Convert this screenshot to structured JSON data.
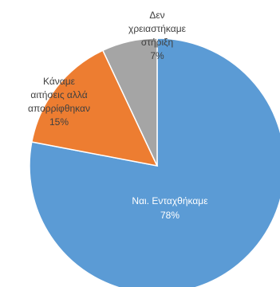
{
  "chart_data": {
    "type": "pie",
    "slices": [
      {
        "label_lines": [
          "Ναι. Ενταχθήκαμε"
        ],
        "percent_label": "78%",
        "value": 78,
        "color": "#5b9bd5",
        "text_color": "#ffffff"
      },
      {
        "label_lines": [
          "Κάναμε",
          "αιτήσεις αλλά",
          "απορρίφθηκαν"
        ],
        "percent_label": "15%",
        "value": 15,
        "color": "#ed7d31",
        "text_color": "#404040"
      },
      {
        "label_lines": [
          "Δεν",
          "χρειαστήκαμε",
          "στήριξη"
        ],
        "percent_label": "7%",
        "value": 7,
        "color": "#a5a5a5",
        "text_color": "#404040"
      }
    ]
  }
}
